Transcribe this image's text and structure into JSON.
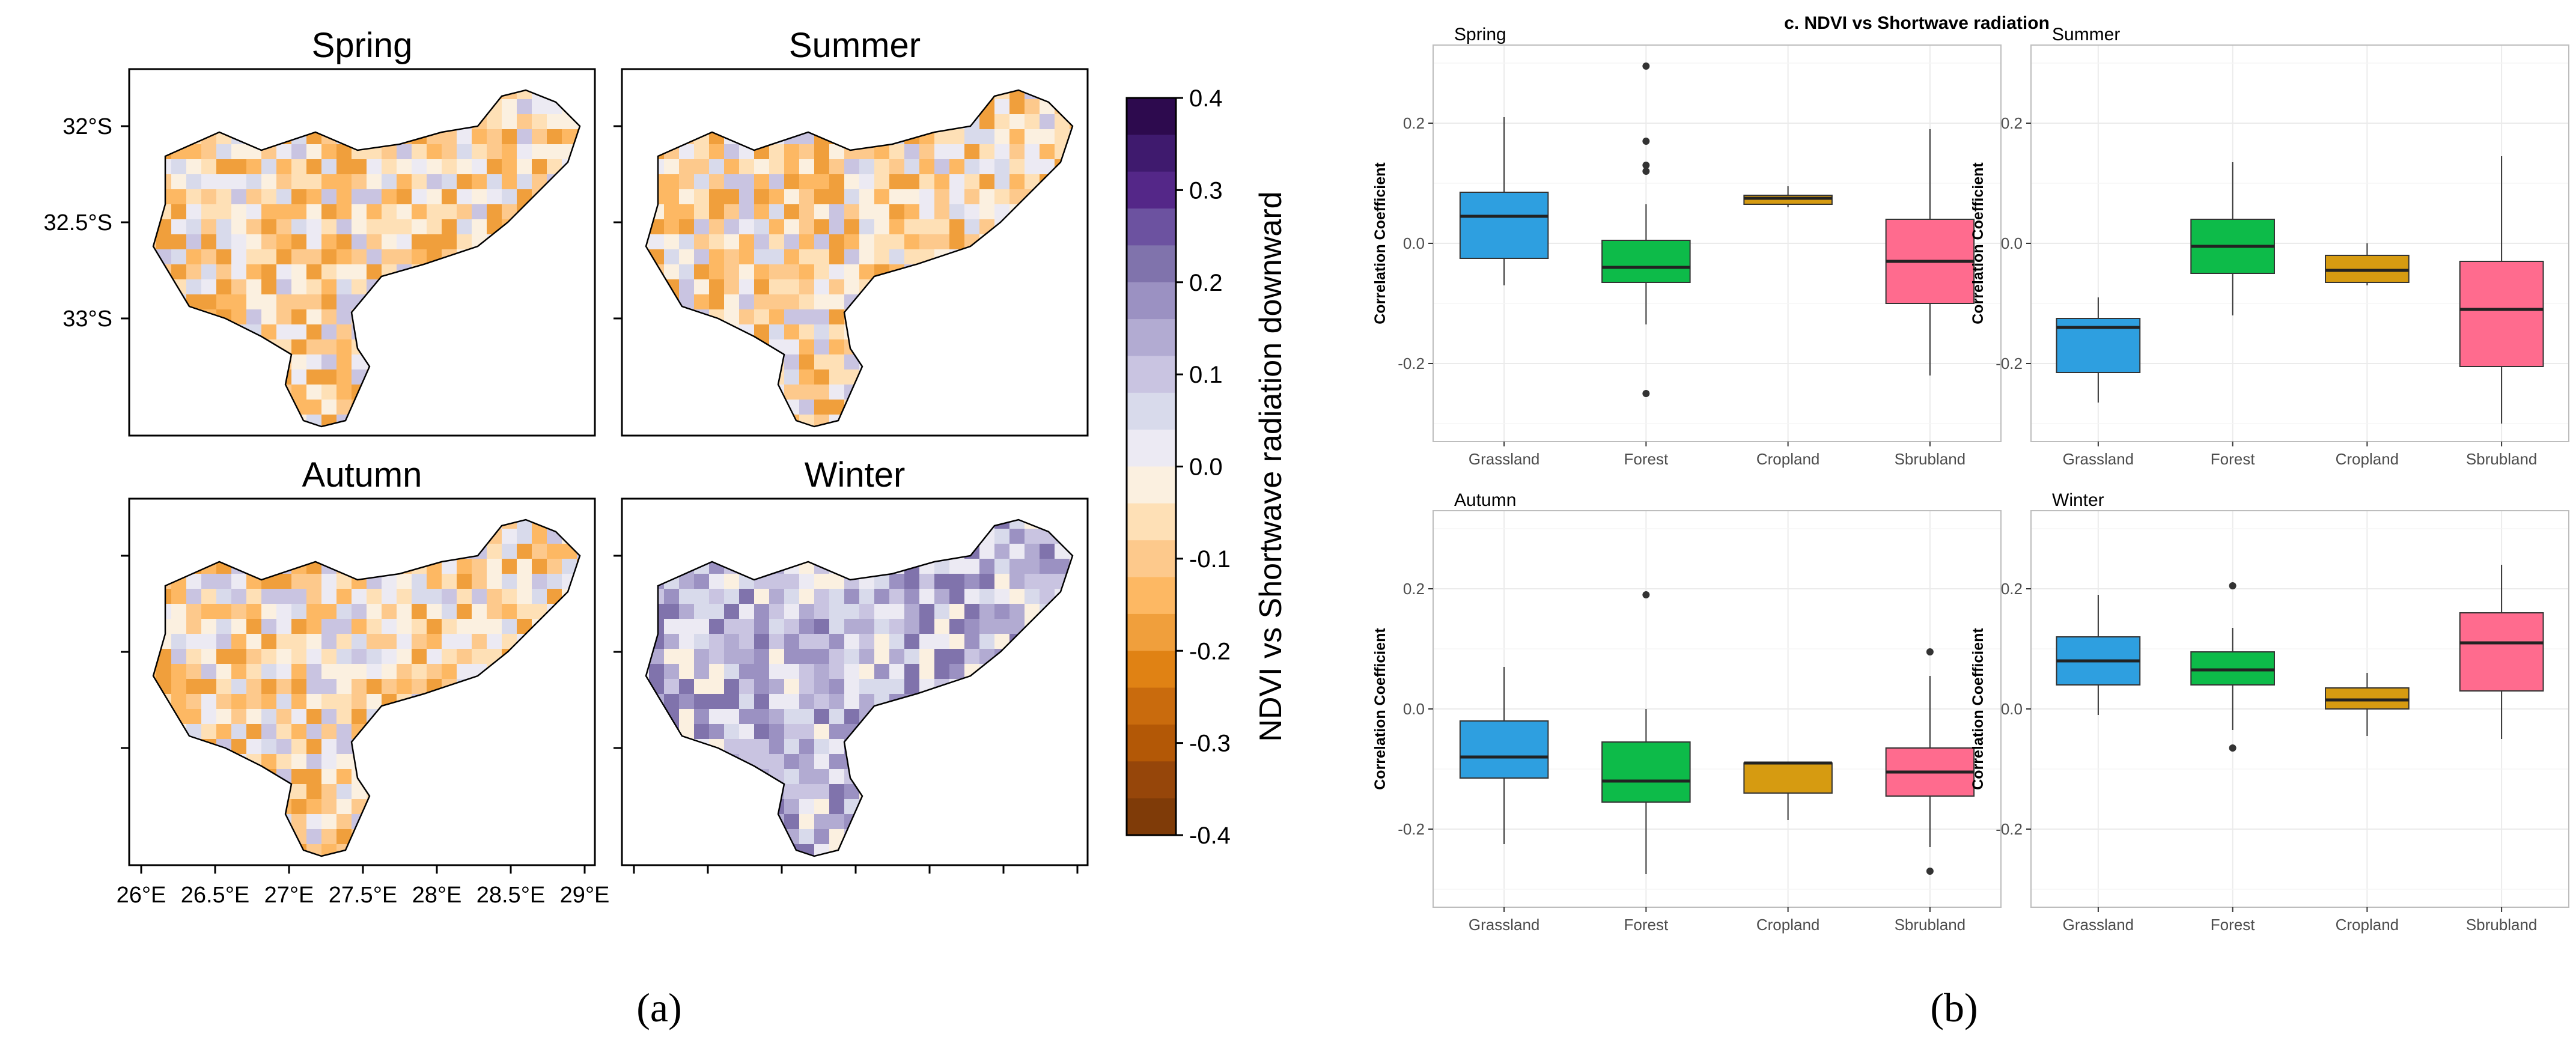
{
  "panel_labels": {
    "a": "(a)",
    "b": "(b)"
  },
  "maps": {
    "titles": [
      "Spring",
      "Summer",
      "Autumn",
      "Winter"
    ],
    "lat_labels": [
      "32°S",
      "32.5°S",
      "33°S"
    ],
    "lon_labels": [
      "26°E",
      "26.5°E",
      "27°E",
      "27.5°E",
      "28°E",
      "28.5°E",
      "29°E"
    ],
    "colorbar": {
      "label": "NDVI vs Shortwave radiation downward",
      "ticks": [
        "0.4",
        "0.3",
        "0.2",
        "0.1",
        "0.0",
        "-0.1",
        "-0.2",
        "-0.3",
        "-0.4"
      ],
      "colors": [
        "#2d0a4e",
        "#3f1a6e",
        "#542788",
        "#6c52a0",
        "#8073ac",
        "#9b91c2",
        "#b2abd2",
        "#c9c4e1",
        "#d8daeb",
        "#eceaf3",
        "#fbf0e0",
        "#fee0b6",
        "#fdc98c",
        "#fdb863",
        "#f09f3c",
        "#e08214",
        "#c96b0d",
        "#b35806",
        "#96460a",
        "#7f3b08"
      ]
    },
    "dominant_sign": [
      "negative",
      "negative",
      "negative",
      "positive"
    ]
  },
  "chart_data": {
    "type": "box",
    "title": "c. NDVI vs Shortwave radiation",
    "ylabel": "Correlation Coefficient",
    "categories": [
      "Grassland",
      "Forest",
      "Cropland",
      "Sbrubland"
    ],
    "colors": {
      "Grassland": "#2e9fe0",
      "Forest": "#0dbb49",
      "Cropland": "#d69b11",
      "Sbrubland": "#ff6b8e"
    },
    "ylim": [
      -0.33,
      0.33
    ],
    "yticks": [
      "0.2",
      "0.0",
      "-0.2"
    ],
    "grid": true,
    "panels": [
      {
        "title": "Spring",
        "boxes": [
          {
            "category": "Grassland",
            "min": -0.07,
            "q1": -0.025,
            "median": 0.045,
            "q3": 0.085,
            "max": 0.21,
            "outliers": []
          },
          {
            "category": "Forest",
            "min": -0.135,
            "q1": -0.065,
            "median": -0.04,
            "q3": 0.005,
            "max": 0.065,
            "outliers": [
              0.295,
              0.17,
              0.13,
              0.12,
              -0.25
            ]
          },
          {
            "category": "Cropland",
            "min": 0.06,
            "q1": 0.065,
            "median": 0.075,
            "q3": 0.08,
            "max": 0.095,
            "outliers": []
          },
          {
            "category": "Sbrubland",
            "min": -0.22,
            "q1": -0.1,
            "median": -0.03,
            "q3": 0.04,
            "max": 0.19,
            "outliers": []
          }
        ]
      },
      {
        "title": "Summer",
        "boxes": [
          {
            "category": "Grassland",
            "min": -0.265,
            "q1": -0.215,
            "median": -0.14,
            "q3": -0.125,
            "max": -0.09,
            "outliers": []
          },
          {
            "category": "Forest",
            "min": -0.12,
            "q1": -0.05,
            "median": -0.005,
            "q3": 0.04,
            "max": 0.135,
            "outliers": []
          },
          {
            "category": "Cropland",
            "min": -0.07,
            "q1": -0.065,
            "median": -0.045,
            "q3": -0.02,
            "max": 0.0,
            "outliers": []
          },
          {
            "category": "Sbrubland",
            "min": -0.3,
            "q1": -0.205,
            "median": -0.11,
            "q3": -0.03,
            "max": 0.145,
            "outliers": []
          }
        ]
      },
      {
        "title": "Autumn",
        "boxes": [
          {
            "category": "Grassland",
            "min": -0.225,
            "q1": -0.115,
            "median": -0.08,
            "q3": -0.02,
            "max": 0.07,
            "outliers": []
          },
          {
            "category": "Forest",
            "min": -0.275,
            "q1": -0.155,
            "median": -0.12,
            "q3": -0.055,
            "max": 0.0,
            "outliers": [
              0.19
            ]
          },
          {
            "category": "Cropland",
            "min": -0.185,
            "q1": -0.14,
            "median": -0.09,
            "q3": -0.09,
            "max": -0.09,
            "outliers": []
          },
          {
            "category": "Sbrubland",
            "min": -0.23,
            "q1": -0.145,
            "median": -0.105,
            "q3": -0.065,
            "max": 0.055,
            "outliers": [
              0.095,
              -0.27
            ]
          }
        ]
      },
      {
        "title": "Winter",
        "boxes": [
          {
            "category": "Grassland",
            "min": -0.01,
            "q1": 0.04,
            "median": 0.08,
            "q3": 0.12,
            "max": 0.19,
            "outliers": []
          },
          {
            "category": "Forest",
            "min": -0.035,
            "q1": 0.04,
            "median": 0.065,
            "q3": 0.095,
            "max": 0.135,
            "outliers": [
              0.205,
              -0.065
            ]
          },
          {
            "category": "Cropland",
            "min": -0.045,
            "q1": 0.0,
            "median": 0.015,
            "q3": 0.035,
            "max": 0.06,
            "outliers": []
          },
          {
            "category": "Sbrubland",
            "min": -0.05,
            "q1": 0.03,
            "median": 0.11,
            "q3": 0.16,
            "max": 0.24,
            "outliers": []
          }
        ]
      }
    ]
  }
}
